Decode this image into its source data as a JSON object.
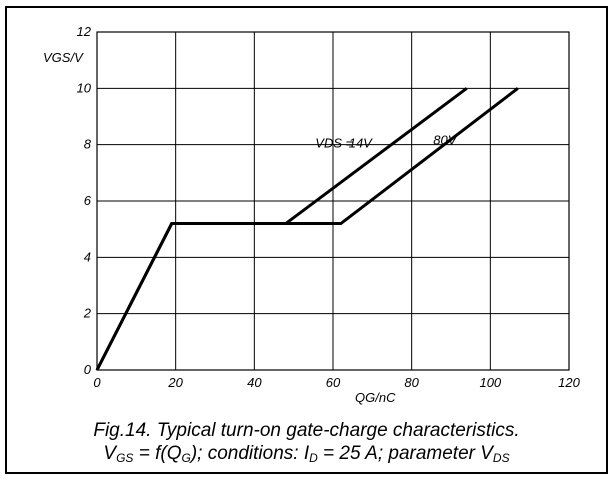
{
  "chart_data": {
    "type": "line",
    "ylabel": "VGS/V",
    "xlabel": "QG/nC",
    "xlim": [
      0,
      120
    ],
    "ylim": [
      0,
      12
    ],
    "xticks": [
      0,
      20,
      40,
      60,
      80,
      100,
      120
    ],
    "yticks": [
      0,
      2,
      4,
      6,
      8,
      10,
      12
    ],
    "grid": true,
    "series": [
      {
        "name": "14V",
        "x": [
          0,
          19,
          48,
          94
        ],
        "y": [
          0,
          5.2,
          5.2,
          10
        ]
      },
      {
        "name": "80V",
        "x": [
          0,
          19,
          62,
          107
        ],
        "y": [
          0,
          5.2,
          5.2,
          10
        ]
      }
    ],
    "annotations": {
      "param_prefix": "VDS =",
      "label_14v": "14V",
      "label_80v": "80V"
    }
  },
  "caption": {
    "line1": "Fig.14.  Typical turn-on gate-charge characteristics.",
    "line2": {
      "v": "V",
      "v_sub": "GS",
      "eq": " = f(Q",
      "q_sub": "G",
      "cond": "); conditions: I",
      "i_sub": "D",
      "cond2": " = 25 A; parameter V",
      "vds_sub": "DS"
    }
  },
  "colors": {
    "line": "#000000",
    "grid": "#000000",
    "background": "#ffffff"
  }
}
